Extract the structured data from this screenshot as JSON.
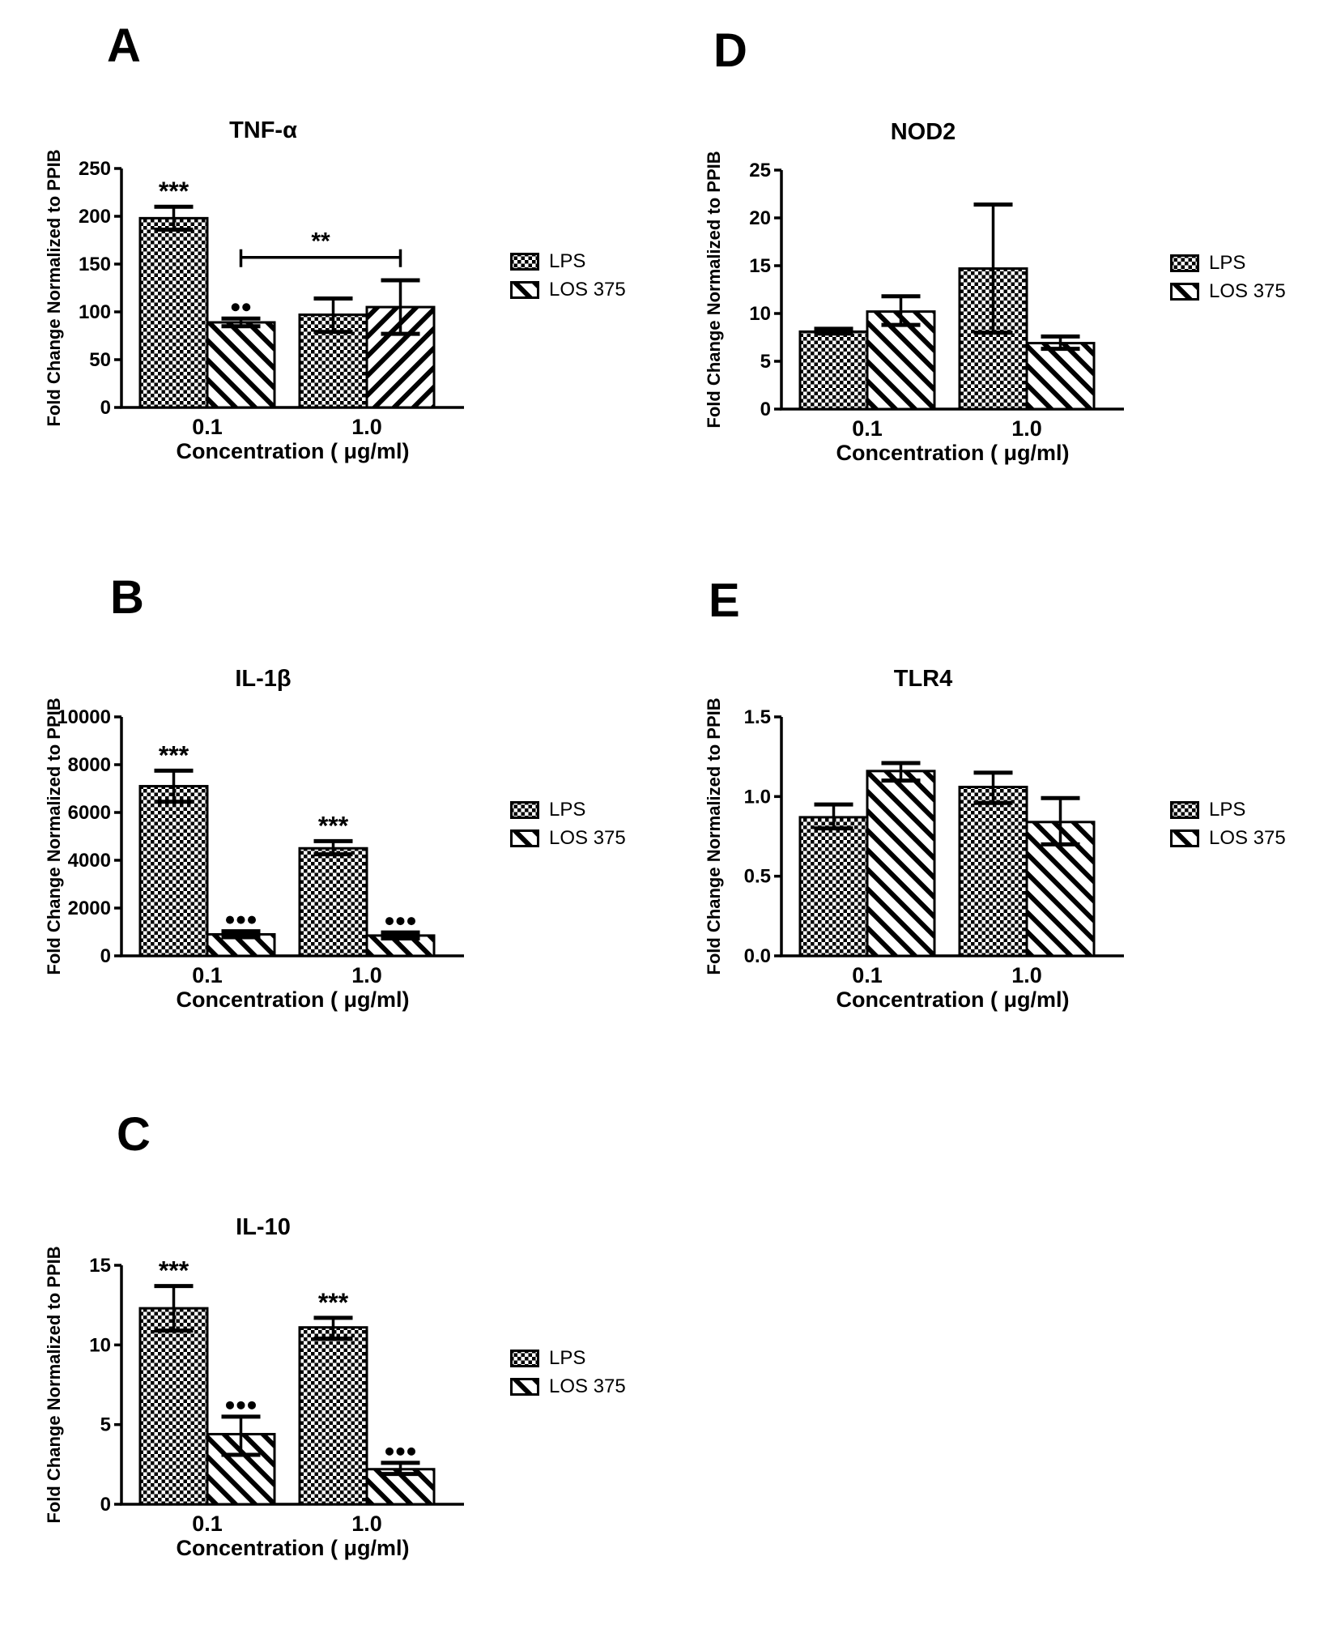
{
  "figure": {
    "background": "#ffffff",
    "ink": "#000000",
    "legend": [
      "LPS",
      "LOS 375"
    ],
    "xlabel": "Concentration ( μg/ml)",
    "ylabel": "Fold Change Normalized to PPIB"
  },
  "chart_data": [
    {
      "panel": "A",
      "type": "bar",
      "title": "TNF-α",
      "xlabel": "Concentration ( μg/ml)",
      "ylabel": "Fold Change Normalized to PPIB",
      "categories": [
        "0.1",
        "1.0"
      ],
      "ylim": [
        0,
        250
      ],
      "yticks": [
        "0",
        "50",
        "100",
        "150",
        "200",
        "250"
      ],
      "legend": [
        "LPS",
        "LOS 375"
      ],
      "legend_position": "right",
      "grid": false,
      "series": [
        {
          "name": "LPS",
          "pattern": "checker",
          "values": [
            198,
            97
          ],
          "err_lo": [
            186,
            79
          ],
          "err_hi": [
            210,
            114
          ],
          "sig": [
            "***",
            ""
          ]
        },
        {
          "name": "LOS 375",
          "pattern": "diag",
          "pattern_per_bar": [
            "diag",
            "diag-back"
          ],
          "values": [
            89,
            105
          ],
          "err_lo": [
            85,
            77
          ],
          "err_hi": [
            93,
            133
          ],
          "sig": [
            "••",
            ""
          ]
        }
      ],
      "bracket": {
        "series": 1,
        "from_group": 0,
        "to_group": 1,
        "y": 157,
        "label": "**"
      }
    },
    {
      "panel": "B",
      "type": "bar",
      "title": "IL-1β",
      "xlabel": "Concentration ( μg/ml)",
      "ylabel": "Fold Change Normalized to PPIB",
      "categories": [
        "0.1",
        "1.0"
      ],
      "ylim": [
        0,
        10000
      ],
      "yticks": [
        "0",
        "2000",
        "4000",
        "6000",
        "8000",
        "10000"
      ],
      "legend": [
        "LPS",
        "LOS 375"
      ],
      "legend_position": "right",
      "grid": false,
      "series": [
        {
          "name": "LPS",
          "pattern": "checker",
          "values": [
            7100,
            4500
          ],
          "err_lo": [
            6450,
            4250
          ],
          "err_hi": [
            7750,
            4800
          ],
          "sig": [
            "***",
            "***"
          ]
        },
        {
          "name": "LOS 375",
          "pattern": "diag",
          "values": [
            900,
            850
          ],
          "err_lo": [
            780,
            730
          ],
          "err_hi": [
            1030,
            980
          ],
          "sig": [
            "•••",
            "•••"
          ]
        }
      ]
    },
    {
      "panel": "C",
      "type": "bar",
      "title": "IL-10",
      "xlabel": "Concentration ( μg/ml)",
      "ylabel": "Fold Change Normalized to PPIB",
      "categories": [
        "0.1",
        "1.0"
      ],
      "ylim": [
        0,
        15
      ],
      "yticks": [
        "0",
        "5",
        "10",
        "15"
      ],
      "legend": [
        "LPS",
        "LOS 375"
      ],
      "legend_position": "right",
      "grid": false,
      "series": [
        {
          "name": "LPS",
          "pattern": "checker",
          "values": [
            12.3,
            11.1
          ],
          "err_lo": [
            10.9,
            10.4
          ],
          "err_hi": [
            13.7,
            11.7
          ],
          "sig": [
            "***",
            "***"
          ]
        },
        {
          "name": "LOS 375",
          "pattern": "diag",
          "values": [
            4.4,
            2.2
          ],
          "err_lo": [
            3.1,
            1.9
          ],
          "err_hi": [
            5.5,
            2.6
          ],
          "sig": [
            "•••",
            "•••"
          ]
        }
      ]
    },
    {
      "panel": "D",
      "type": "bar",
      "title": "NOD2",
      "xlabel": "Concentration ( μg/ml)",
      "ylabel": "Fold Change Normalized to PPIB",
      "categories": [
        "0.1",
        "1.0"
      ],
      "ylim": [
        0,
        25
      ],
      "yticks": [
        "0",
        "5",
        "10",
        "15",
        "20",
        "25"
      ],
      "legend": [
        "LPS",
        "LOS 375"
      ],
      "legend_position": "right",
      "grid": false,
      "series": [
        {
          "name": "LPS",
          "pattern": "checker",
          "values": [
            8.1,
            14.7
          ],
          "err_lo": [
            7.9,
            8.0
          ],
          "err_hi": [
            8.4,
            21.4
          ],
          "sig": [
            "",
            ""
          ]
        },
        {
          "name": "LOS 375",
          "pattern": "diag",
          "values": [
            10.2,
            6.9
          ],
          "err_lo": [
            8.8,
            6.3
          ],
          "err_hi": [
            11.8,
            7.6
          ],
          "sig": [
            "",
            ""
          ]
        }
      ]
    },
    {
      "panel": "E",
      "type": "bar",
      "title": "TLR4",
      "xlabel": "Concentration ( μg/ml)",
      "ylabel": "Fold Change Normalized to PPIB",
      "categories": [
        "0.1",
        "1.0"
      ],
      "ylim": [
        0,
        1.5
      ],
      "yticks": [
        "0.0",
        "0.5",
        "1.0",
        "1.5"
      ],
      "legend": [
        "LPS",
        "LOS 375"
      ],
      "legend_position": "right",
      "grid": false,
      "series": [
        {
          "name": "LPS",
          "pattern": "checker",
          "values": [
            0.87,
            1.06
          ],
          "err_lo": [
            0.8,
            0.96
          ],
          "err_hi": [
            0.95,
            1.15
          ],
          "sig": [
            "",
            ""
          ]
        },
        {
          "name": "LOS 375",
          "pattern": "diag",
          "values": [
            1.16,
            0.84
          ],
          "err_lo": [
            1.1,
            0.7
          ],
          "err_hi": [
            1.21,
            0.99
          ],
          "sig": [
            "",
            ""
          ]
        }
      ]
    }
  ]
}
